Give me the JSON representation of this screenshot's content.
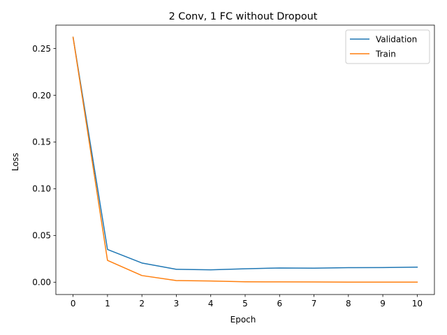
{
  "chart_data": {
    "type": "line",
    "title": "2 Conv, 1 FC without Dropout",
    "xlabel": "Epoch",
    "ylabel": "Loss",
    "x": [
      0,
      1,
      2,
      3,
      4,
      5,
      6,
      7,
      8,
      9,
      10
    ],
    "xlim": [
      -0.5,
      10.5
    ],
    "ylim": [
      -0.0132,
      0.275
    ],
    "xticks": [
      "0",
      "1",
      "2",
      "3",
      "4",
      "5",
      "6",
      "7",
      "8",
      "9",
      "10"
    ],
    "yticks": [
      {
        "value": 0.0,
        "label": "0.00"
      },
      {
        "value": 0.05,
        "label": "0.05"
      },
      {
        "value": 0.1,
        "label": "0.10"
      },
      {
        "value": 0.15,
        "label": "0.15"
      },
      {
        "value": 0.2,
        "label": "0.20"
      },
      {
        "value": 0.25,
        "label": "0.25"
      }
    ],
    "grid": false,
    "legend": "upper right",
    "series": [
      {
        "name": "Validation",
        "color": "#1f77b4",
        "values": [
          0.262,
          0.035,
          0.0205,
          0.0138,
          0.0132,
          0.0143,
          0.0152,
          0.015,
          0.0155,
          0.0156,
          0.0161
        ]
      },
      {
        "name": "Train",
        "color": "#ff7f0e",
        "values": [
          0.262,
          0.0233,
          0.0071,
          0.0017,
          0.0013,
          0.0004,
          0.0003,
          0.0002,
          0.0001,
          0.0001,
          0.0001
        ]
      }
    ]
  }
}
